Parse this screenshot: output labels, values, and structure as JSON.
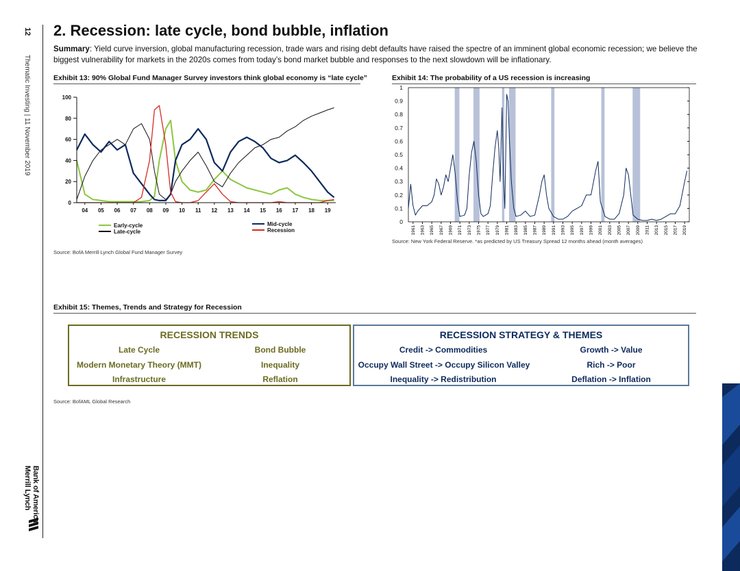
{
  "page": {
    "number": "12",
    "report_meta": "Thematic Investing | 11 November 2019",
    "brand_line1": "Bank of America",
    "brand_line2": "Merrill Lynch",
    "title": "2. Recession: late cycle, bond bubble, inflation",
    "summary_label": "Summary",
    "summary_text": ": Yield curve inversion, global manufacturing recession, trade wars and rising debt defaults have raised the spectre of an imminent global economic recession; we believe the biggest vulnerability for markets in the 2020s comes from today’s bond market bubble and responses to the next slowdown will be inflationary."
  },
  "colors": {
    "early_cycle": "#8cc63f",
    "late_cycle": "#111111",
    "mid_cycle": "#0d2a5c",
    "recession": "#d62a1e",
    "recession_shade": "#b7c1d8",
    "trends_border": "#6b6b22",
    "strategy_border": "#5a7a99",
    "sidebar": "#0d2a5c"
  },
  "exhibit13": {
    "title": "Exhibit 13: 90% Global Fund Manager Survey investors think global economy is “late cycle”",
    "source": "Source: BofA Merrill Lynch Global Fund Manager Survey",
    "legend": [
      "Early-cycle",
      "Late-cycle",
      "Mid-cycle",
      "Recession"
    ]
  },
  "exhibit14": {
    "title": "Exhibit 14: The probability of a US recession is increasing",
    "source": "Source: New York Federal Reserve. *as predicted by US Treasury Spread 12 months ahead (month averages)"
  },
  "exhibit15": {
    "title": "Exhibit 15: Themes, Trends and Strategy for Recession",
    "source": "Source: BofAML Global Research",
    "trends_header": "RECESSION TRENDS",
    "trends": [
      "Late Cycle",
      "Bond Bubble",
      "Modern Monetary Theory (MMT)",
      "Inequality",
      "Infrastructure",
      "Reflation"
    ],
    "strategy_header": "RECESSION STRATEGY & THEMES",
    "strategy": [
      "Credit -> Commodities",
      "Growth -> Value",
      "Occupy Wall Street -> Occupy Silicon Valley",
      "Rich -> Poor",
      "Inequality -> Redistribution",
      "Deflation -> Inflation"
    ]
  },
  "chart_data": [
    {
      "type": "line",
      "title": "Exhibit 13: 90% Global Fund Manager Survey investors think global economy is “late cycle”",
      "x_ticks": [
        "04",
        "05",
        "06",
        "07",
        "08",
        "09",
        "10",
        "11",
        "12",
        "13",
        "14",
        "15",
        "16",
        "17",
        "18",
        "19"
      ],
      "ylim": [
        0,
        100
      ],
      "y_ticks": [
        0,
        20,
        40,
        60,
        80,
        100
      ],
      "x": [
        2003.5,
        2004,
        2004.5,
        2005,
        2005.5,
        2006,
        2006.5,
        2007,
        2007.5,
        2008,
        2008.3,
        2008.6,
        2009,
        2009.3,
        2009.6,
        2010,
        2010.5,
        2011,
        2011.5,
        2012,
        2012.5,
        2013,
        2013.5,
        2014,
        2014.5,
        2015,
        2015.5,
        2016,
        2016.5,
        2017,
        2017.5,
        2018,
        2018.5,
        2019,
        2019.4
      ],
      "series": [
        {
          "name": "Early-cycle",
          "values": [
            40,
            8,
            3,
            2,
            1,
            1,
            1,
            1,
            1,
            2,
            6,
            40,
            70,
            78,
            40,
            20,
            12,
            10,
            12,
            22,
            30,
            22,
            18,
            14,
            12,
            10,
            8,
            12,
            14,
            8,
            5,
            3,
            2,
            2,
            2
          ]
        },
        {
          "name": "Late-cycle",
          "values": [
            3,
            25,
            40,
            50,
            55,
            60,
            55,
            70,
            75,
            60,
            30,
            8,
            3,
            8,
            20,
            30,
            40,
            48,
            35,
            20,
            15,
            28,
            38,
            45,
            52,
            55,
            60,
            62,
            68,
            72,
            78,
            82,
            85,
            88,
            90
          ]
        },
        {
          "name": "Mid-cycle",
          "values": [
            50,
            65,
            55,
            48,
            58,
            50,
            55,
            28,
            18,
            8,
            3,
            2,
            2,
            8,
            40,
            55,
            60,
            70,
            60,
            38,
            30,
            48,
            58,
            62,
            58,
            52,
            42,
            38,
            40,
            45,
            38,
            30,
            20,
            10,
            5
          ]
        },
        {
          "name": "Recession",
          "values": [
            0,
            0,
            0,
            0,
            0,
            0,
            0,
            0,
            5,
            40,
            88,
            92,
            55,
            10,
            1,
            0,
            0,
            2,
            10,
            18,
            8,
            1,
            0,
            0,
            0,
            0,
            0,
            1,
            0,
            0,
            0,
            0,
            0,
            2,
            3
          ]
        }
      ]
    },
    {
      "type": "line",
      "title": "Exhibit 14: The probability of a US recession is increasing",
      "x_ticks": [
        "1961",
        "1963",
        "1965",
        "1967",
        "1969",
        "1971",
        "1973",
        "1975",
        "1977",
        "1979",
        "1981",
        "1983",
        "1985",
        "1987",
        "1989",
        "1991",
        "1993",
        "1995",
        "1997",
        "1999",
        "2001",
        "2003",
        "2005",
        "2007",
        "2009",
        "2011",
        "2013",
        "2015",
        "2017",
        "2019"
      ],
      "ylim": [
        0,
        1
      ],
      "y_ticks": [
        0,
        0.1,
        0.2,
        0.3,
        0.4,
        0.5,
        0.6,
        0.7,
        0.8,
        0.9,
        1
      ],
      "recessions": [
        [
          1969.9,
          1970.9
        ],
        [
          1973.9,
          1975.2
        ],
        [
          1980.0,
          1980.5
        ],
        [
          1981.5,
          1982.9
        ],
        [
          1990.5,
          1991.2
        ],
        [
          2001.2,
          2001.9
        ],
        [
          2007.9,
          2009.5
        ]
      ],
      "x": [
        1960,
        1960.5,
        1961,
        1961.5,
        1962,
        1963,
        1964,
        1965,
        1965.5,
        1966,
        1966.5,
        1967,
        1967.5,
        1968,
        1968.5,
        1969,
        1969.5,
        1970,
        1970.5,
        1971,
        1972,
        1972.5,
        1973,
        1973.5,
        1974,
        1974.5,
        1975,
        1975.5,
        1976,
        1977,
        1977.5,
        1978,
        1978.5,
        1979,
        1979.3,
        1979.6,
        1980,
        1980.3,
        1980.6,
        1981,
        1981.3,
        1981.6,
        1982,
        1982.5,
        1983,
        1984,
        1985,
        1986,
        1987,
        1988,
        1988.5,
        1989,
        1989.5,
        1990,
        1991,
        1992,
        1993,
        1994,
        1995,
        1996,
        1997,
        1998,
        1999,
        2000,
        2000.5,
        2001,
        2002,
        2003,
        2004,
        2005,
        2006,
        2006.5,
        2007,
        2007.5,
        2008,
        2009,
        2010,
        2011,
        2012,
        2013,
        2014,
        2015,
        2016,
        2017,
        2018,
        2019,
        2019.5
      ],
      "values": [
        0.1,
        0.28,
        0.12,
        0.05,
        0.08,
        0.12,
        0.12,
        0.15,
        0.2,
        0.32,
        0.28,
        0.2,
        0.26,
        0.35,
        0.3,
        0.4,
        0.5,
        0.36,
        0.15,
        0.04,
        0.05,
        0.1,
        0.35,
        0.52,
        0.6,
        0.45,
        0.2,
        0.06,
        0.04,
        0.06,
        0.12,
        0.35,
        0.55,
        0.68,
        0.55,
        0.3,
        0.85,
        0.35,
        0.1,
        0.95,
        0.9,
        0.6,
        0.3,
        0.1,
        0.04,
        0.05,
        0.08,
        0.04,
        0.05,
        0.2,
        0.3,
        0.35,
        0.2,
        0.1,
        0.04,
        0.02,
        0.02,
        0.04,
        0.08,
        0.1,
        0.12,
        0.2,
        0.2,
        0.38,
        0.45,
        0.15,
        0.04,
        0.02,
        0.02,
        0.06,
        0.2,
        0.4,
        0.35,
        0.2,
        0.05,
        0.02,
        0.01,
        0.01,
        0.02,
        0.01,
        0.02,
        0.04,
        0.06,
        0.06,
        0.12,
        0.3,
        0.38
      ]
    }
  ]
}
